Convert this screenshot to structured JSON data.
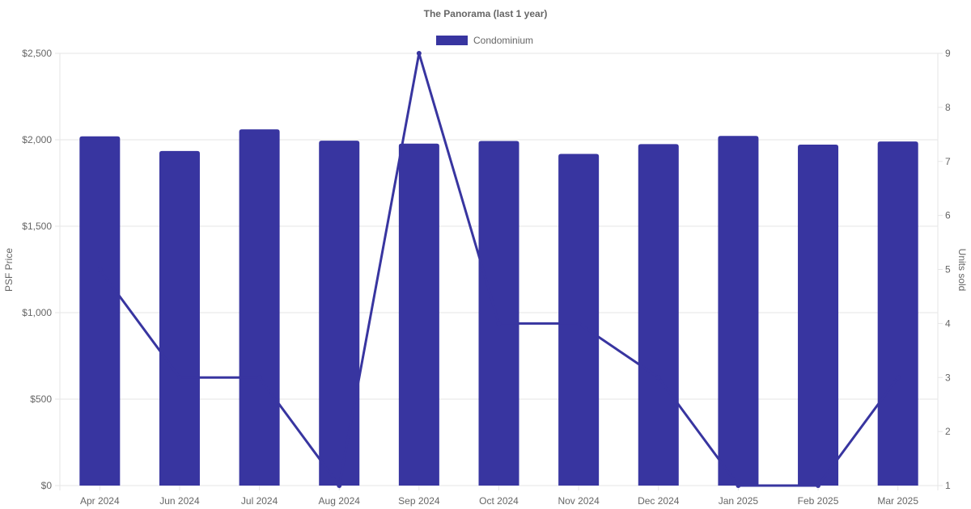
{
  "chart_data": {
    "type": "bar",
    "title": "The Panorama (last 1 year)",
    "categories": [
      "Apr 2024",
      "Jun 2024",
      "Jul 2024",
      "Aug 2024",
      "Sep 2024",
      "Oct 2024",
      "Nov 2024",
      "Dec 2024",
      "Jan 2025",
      "Feb 2025",
      "Mar 2025"
    ],
    "series": [
      {
        "name": "Condominium",
        "type": "bar",
        "axis": "left",
        "values": [
          2020,
          1935,
          2060,
          1995,
          1978,
          1993,
          1918,
          1975,
          2022,
          1972,
          1990
        ]
      },
      {
        "type": "line",
        "axis": "right",
        "values": [
          5,
          3,
          3,
          1,
          9,
          4,
          4,
          3,
          1,
          1,
          3
        ]
      }
    ],
    "ylabel": "PSF Price",
    "y2label": "Units sold",
    "ylim": [
      0,
      2500
    ],
    "y2lim": [
      1,
      9
    ],
    "yticks": [
      "$0",
      "$500",
      "$1,000",
      "$1,500",
      "$2,000",
      "$2,500"
    ],
    "y2ticks": [
      "1",
      "2",
      "3",
      "4",
      "5",
      "6",
      "7",
      "8",
      "9"
    ],
    "legend": "top",
    "grid": true,
    "colors": {
      "bar": "#3835a0",
      "line": "#3835a0"
    }
  }
}
